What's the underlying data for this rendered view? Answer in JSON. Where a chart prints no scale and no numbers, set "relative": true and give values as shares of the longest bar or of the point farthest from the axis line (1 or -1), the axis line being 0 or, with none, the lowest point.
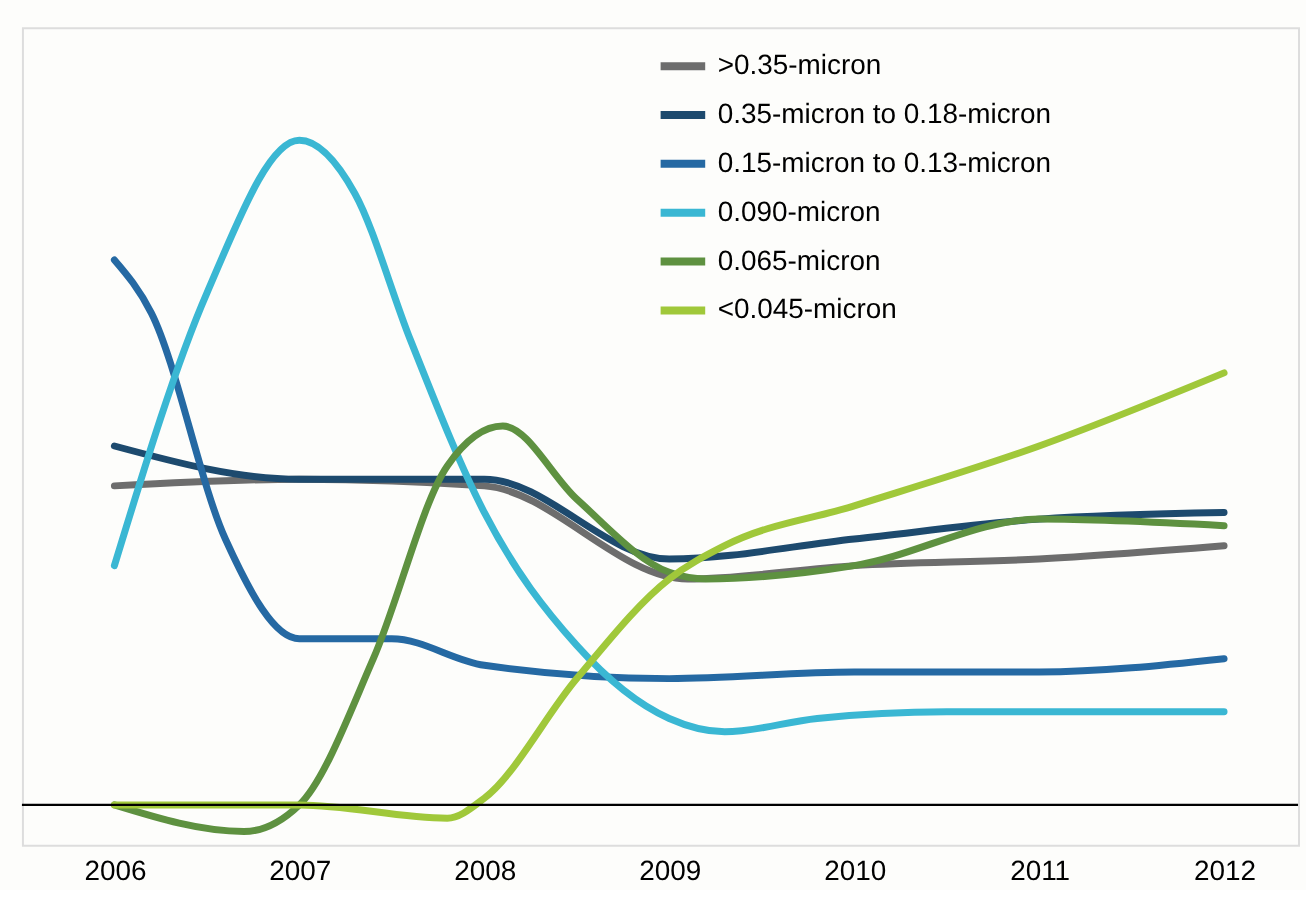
{
  "chart_data": {
    "type": "line",
    "relative": true,
    "xlim": [
      2005.5,
      2012.4
    ],
    "xticks": [
      2006,
      2007,
      2008,
      2009,
      2010,
      2011,
      2012
    ],
    "grid": false,
    "legend": "top right",
    "line_style": "solid",
    "series": [
      {
        "name": ">0.35-micron",
        "color": "#6d6d6d",
        "x": [
          2006,
          2007,
          2008,
          2009.1,
          2010,
          2011,
          2012
        ],
        "values": [
          0.48,
          0.49,
          0.48,
          0.34,
          0.36,
          0.37,
          0.39
        ]
      },
      {
        "name": " 0.35-micron to 0.18-micron",
        "color": "#1d4a6e",
        "x": [
          2006,
          2007,
          2008,
          2009,
          2010,
          2011,
          2012
        ],
        "values": [
          0.54,
          0.49,
          0.49,
          0.37,
          0.4,
          0.43,
          0.44
        ]
      },
      {
        "name": " 0.15-micron to 0.13-micron",
        "color": "#2569a3",
        "x": [
          2006,
          2006.2,
          2006.6,
          2007,
          2007.5,
          2008,
          2009,
          2010,
          2011,
          2012
        ],
        "values": [
          0.82,
          0.74,
          0.4,
          0.25,
          0.25,
          0.21,
          0.19,
          0.2,
          0.2,
          0.22
        ]
      },
      {
        "name": " 0.090-micron",
        "color": "#3ab7d3",
        "x": [
          2006,
          2006.5,
          2007,
          2007.3,
          2007.6,
          2008,
          2008.5,
          2009,
          2009.3,
          2009.8,
          2010.5,
          2012
        ],
        "values": [
          0.36,
          0.77,
          1,
          0.92,
          0.7,
          0.44,
          0.24,
          0.13,
          0.11,
          0.13,
          0.14,
          0.14
        ]
      },
      {
        "name": "0.065-micron",
        "color": "#5e9140",
        "x": [
          2006,
          2006.7,
          2007,
          2007.4,
          2007.8,
          2008.1,
          2008.5,
          2009,
          2009.2,
          2010,
          2011,
          2012
        ],
        "values": [
          0,
          -0.04,
          0,
          0.22,
          0.51,
          0.57,
          0.46,
          0.35,
          0.34,
          0.36,
          0.43,
          0.42
        ]
      },
      {
        "name": "<0.045-micron",
        "color": "#a0c83a",
        "x": [
          2006,
          2007,
          2007.8,
          2008,
          2008.5,
          2009,
          2009.3,
          2010,
          2011,
          2012
        ],
        "values": [
          0,
          0,
          -0.02,
          0.01,
          0.19,
          0.34,
          0.39,
          0.45,
          0.54,
          0.65
        ]
      }
    ]
  }
}
